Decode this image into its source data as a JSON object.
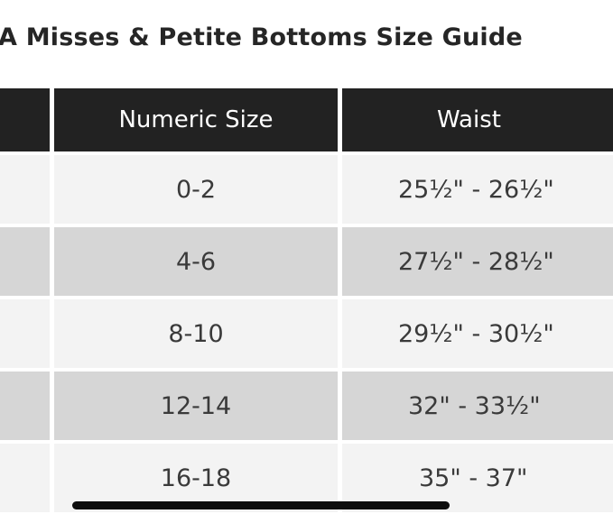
{
  "title": "A Misses & Petite Bottoms Size Guide",
  "table": {
    "headers": [
      "",
      "Numeric Size",
      "Waist"
    ],
    "rows": [
      {
        "size": "0-2",
        "waist": "25½\" - 26½\""
      },
      {
        "size": "4-6",
        "waist": "27½\" - 28½\""
      },
      {
        "size": "8-10",
        "waist": "29½\" - 30½\""
      },
      {
        "size": "12-14",
        "waist": "32\" - 33½\""
      },
      {
        "size": "16-18",
        "waist": "35\" - 37\""
      }
    ]
  },
  "colors": {
    "header_bg": "#222222",
    "row_light": "#f3f3f3",
    "row_dark": "#d6d6d6"
  }
}
